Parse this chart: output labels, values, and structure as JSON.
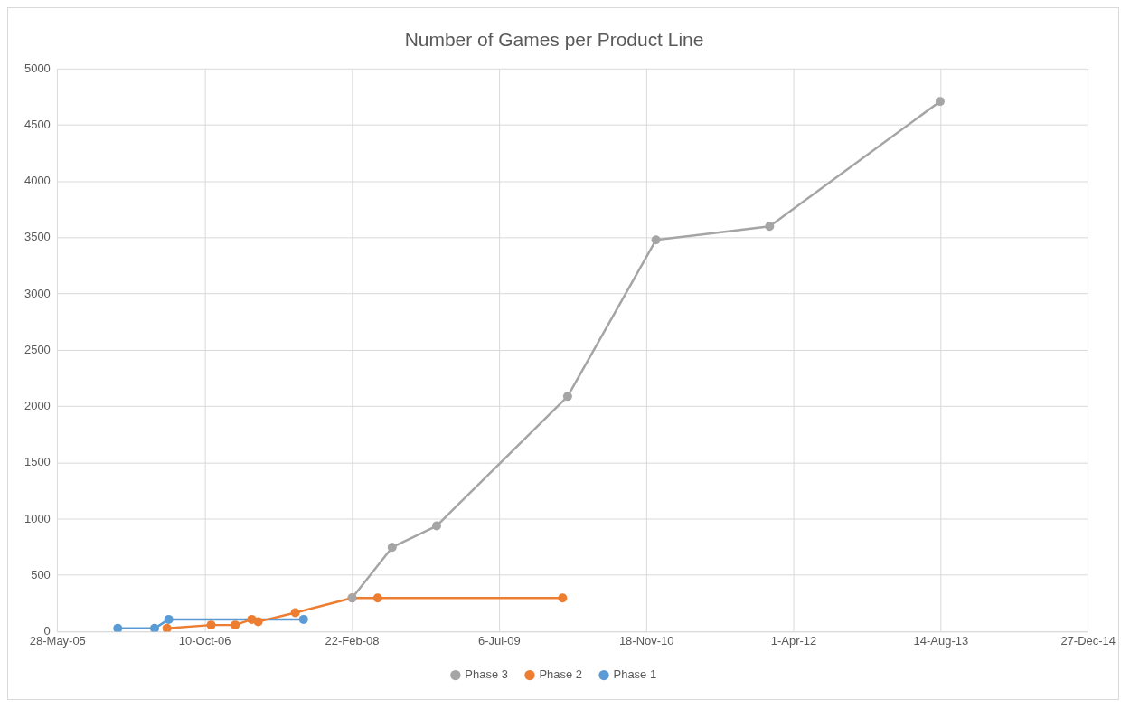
{
  "chart_data": {
    "type": "line",
    "title": "Number of Games per Product Line",
    "series": [
      {
        "name": "Phase 1",
        "color": "#5b9bd5",
        "x": [
          "2005-12-18",
          "2006-04-22",
          "2006-06-09",
          "2007-09-10"
        ],
        "values": [
          30,
          30,
          110,
          110
        ]
      },
      {
        "name": "Phase 2",
        "color": "#ed7d31",
        "x": [
          "2006-06-03",
          "2006-10-31",
          "2007-01-21",
          "2007-03-18",
          "2007-04-09",
          "2007-08-13",
          "2008-02-22",
          "2008-05-19",
          "2010-02-06"
        ],
        "values": [
          30,
          60,
          60,
          110,
          90,
          170,
          300,
          300,
          300
        ]
      },
      {
        "name": "Phase 3",
        "color": "#a5a5a5",
        "x": [
          "2008-02-22",
          "2008-07-07",
          "2008-12-05",
          "2010-02-23",
          "2010-12-20",
          "2012-01-10",
          "2013-08-11"
        ],
        "values": [
          300,
          750,
          940,
          2090,
          3480,
          3600,
          4710
        ]
      }
    ],
    "xlim": [
      "2005-05-28",
      "2014-12-27"
    ],
    "xticks": [
      {
        "value": "2005-05-28",
        "label": "28-May-05"
      },
      {
        "value": "2006-10-10",
        "label": "10-Oct-06"
      },
      {
        "value": "2008-02-22",
        "label": "22-Feb-08"
      },
      {
        "value": "2009-07-06",
        "label": "6-Jul-09"
      },
      {
        "value": "2010-11-18",
        "label": "18-Nov-10"
      },
      {
        "value": "2012-04-01",
        "label": "1-Apr-12"
      },
      {
        "value": "2013-08-14",
        "label": "14-Aug-13"
      },
      {
        "value": "2014-12-27",
        "label": "27-Dec-14"
      }
    ],
    "ylim": [
      0,
      5000
    ],
    "yticks": [
      0,
      500,
      1000,
      1500,
      2000,
      2500,
      3000,
      3500,
      4000,
      4500,
      5000
    ],
    "grid": true,
    "legend": "bottom",
    "marker": "circle",
    "line_style": "solid"
  }
}
